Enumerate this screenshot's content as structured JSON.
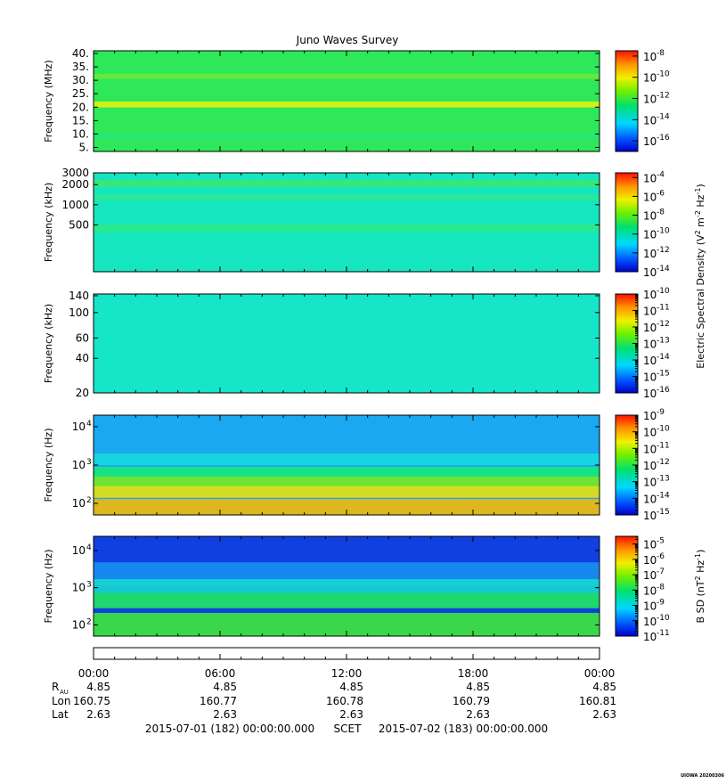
{
  "chart_data": {
    "type": "heatmap",
    "title": "Juno Waves Survey",
    "x_axis": {
      "ticks": [
        "00:00",
        "06:00",
        "12:00",
        "18:00",
        "00:00"
      ],
      "range_hours": [
        0,
        24
      ],
      "rows": [
        {
          "label": "R",
          "sub": "AU",
          "values": [
            "4.85",
            "4.85",
            "4.85",
            "4.85",
            "4.85"
          ]
        },
        {
          "label": "Lon",
          "sub": "",
          "values": [
            "160.75",
            "160.77",
            "160.78",
            "160.79",
            "160.81"
          ]
        },
        {
          "label": "Lat",
          "sub": "",
          "values": [
            "2.63",
            "2.63",
            "2.63",
            "2.63",
            "2.63"
          ]
        }
      ],
      "start_label": "2015-07-01 (182) 00:00:00.000",
      "scet_label": "SCET",
      "end_label": "2015-07-02 (183) 00:00:00.000"
    },
    "colorbar_labels": [
      {
        "text": "Electric Spectral Density (V",
        "sup1": "2",
        "mid": " m",
        "sup2": "-2",
        "tail": " Hz",
        "sup3": "-1",
        "end": ")"
      },
      {
        "text": "B SD (nT",
        "sup1": "2",
        "mid": " Hz",
        "sup2": "-1",
        "tail": ")",
        "sup3": "",
        "end": ""
      }
    ],
    "panels": [
      {
        "ylabel": "Frequency (MHz)",
        "yscale": "linear",
        "yrange": [
          3.5,
          41
        ],
        "yticks": [
          {
            "v": 40,
            "t": "40."
          },
          {
            "v": 35,
            "t": "35."
          },
          {
            "v": 30,
            "t": "30."
          },
          {
            "v": 25,
            "t": "25."
          },
          {
            "v": 20,
            "t": "20."
          },
          {
            "v": 15,
            "t": "15."
          },
          {
            "v": 10,
            "t": "10."
          },
          {
            "v": 5,
            "t": "5."
          }
        ],
        "colorbar": {
          "scale": "log",
          "range_exp": [
            -17,
            -7.5
          ],
          "tick_exps": [
            -8,
            -10,
            -12,
            -14,
            -16
          ],
          "minor": false
        },
        "background": "#2ee85a",
        "bands": [
          {
            "f": 31.5,
            "w": 0.9,
            "c": "#6ee83c"
          },
          {
            "f": 21.0,
            "w": 1.1,
            "c": "#e4ef10"
          },
          {
            "f": 9.0,
            "w": 0.7,
            "c": "#22e684"
          }
        ]
      },
      {
        "ylabel": "Frequency (kHz)",
        "yscale": "log",
        "yrange": [
          100,
          3000
        ],
        "yticks": [
          {
            "v": 3000,
            "t": "3000"
          },
          {
            "v": 2000,
            "t": "2000"
          },
          {
            "v": 1000,
            "t": "1000"
          },
          {
            "v": 500,
            "t": "500"
          }
        ],
        "colorbar": {
          "scale": "log",
          "range_exp": [
            -14,
            -3.5
          ],
          "tick_exps": [
            -4,
            -6,
            -8,
            -10,
            -12,
            -14
          ],
          "minor": false
        },
        "background": "#16e6c0",
        "bands": [
          {
            "f": 2100,
            "w": 250,
            "c": "#3ae874"
          },
          {
            "f": 1300,
            "w": 140,
            "c": "#2ae89a"
          },
          {
            "f": 450,
            "w": 60,
            "c": "#2ae98a"
          }
        ]
      },
      {
        "ylabel": "Frequency (kHz)",
        "yscale": "log",
        "yrange": [
          20,
          145
        ],
        "yticks": [
          {
            "v": 140,
            "t": "140"
          },
          {
            "v": 100,
            "t": "100"
          },
          {
            "v": 60,
            "t": "60"
          },
          {
            "v": 40,
            "t": "40"
          },
          {
            "v": 20,
            "t": "20"
          }
        ],
        "colorbar": {
          "scale": "log",
          "range_exp": [
            -16,
            -10
          ],
          "tick_exps": [
            -10,
            -11,
            -12,
            -13,
            -14,
            -15,
            -16
          ],
          "minor": true
        },
        "background": "#16e6c8",
        "bands": []
      },
      {
        "ylabel": "Frequency (Hz)",
        "yscale": "log",
        "yrange": [
          50,
          20000
        ],
        "yticks": [
          {
            "v": 10000,
            "t": "10",
            "sup": "4"
          },
          {
            "v": 1000,
            "t": "10",
            "sup": "3"
          },
          {
            "v": 100,
            "t": "10",
            "sup": "2"
          }
        ],
        "colorbar": {
          "scale": "log",
          "range_exp": [
            -15,
            -9
          ],
          "tick_exps": [
            -9,
            -10,
            -11,
            -12,
            -13,
            -14,
            -15
          ],
          "minor": true
        },
        "background": "#1aa8f0",
        "bands": [
          {
            "f": 1500,
            "w": 500,
            "c": "#18d8e0"
          },
          {
            "f": 700,
            "w": 200,
            "c": "#16e878"
          },
          {
            "f": 380,
            "w": 120,
            "c": "#7ae820"
          },
          {
            "f": 210,
            "w": 70,
            "c": "#e8e010"
          },
          {
            "f": 90,
            "w": 40,
            "c": "#f2b808"
          }
        ]
      },
      {
        "ylabel": "Frequency (Hz)",
        "yscale": "log",
        "yrange": [
          50,
          24000
        ],
        "yticks": [
          {
            "v": 10000,
            "t": "10",
            "sup": "4"
          },
          {
            "v": 1000,
            "t": "10",
            "sup": "3"
          },
          {
            "v": 100,
            "t": "10",
            "sup": "2"
          }
        ],
        "colorbar": {
          "scale": "log",
          "range_exp": [
            -11,
            -4.5
          ],
          "tick_exps": [
            -5,
            -6,
            -7,
            -8,
            -9,
            -10,
            -11
          ],
          "minor": true
        },
        "background": "#1040e0",
        "bands": [
          {
            "f": 3000,
            "w": 1800,
            "c": "#1890f0"
          },
          {
            "f": 1200,
            "w": 500,
            "c": "#16d8d0"
          },
          {
            "f": 500,
            "w": 220,
            "c": "#20e860"
          },
          {
            "f": 120,
            "w": 90,
            "c": "#40e83a"
          }
        ]
      }
    ]
  },
  "footer_stamp": "UIOWA 20200306"
}
